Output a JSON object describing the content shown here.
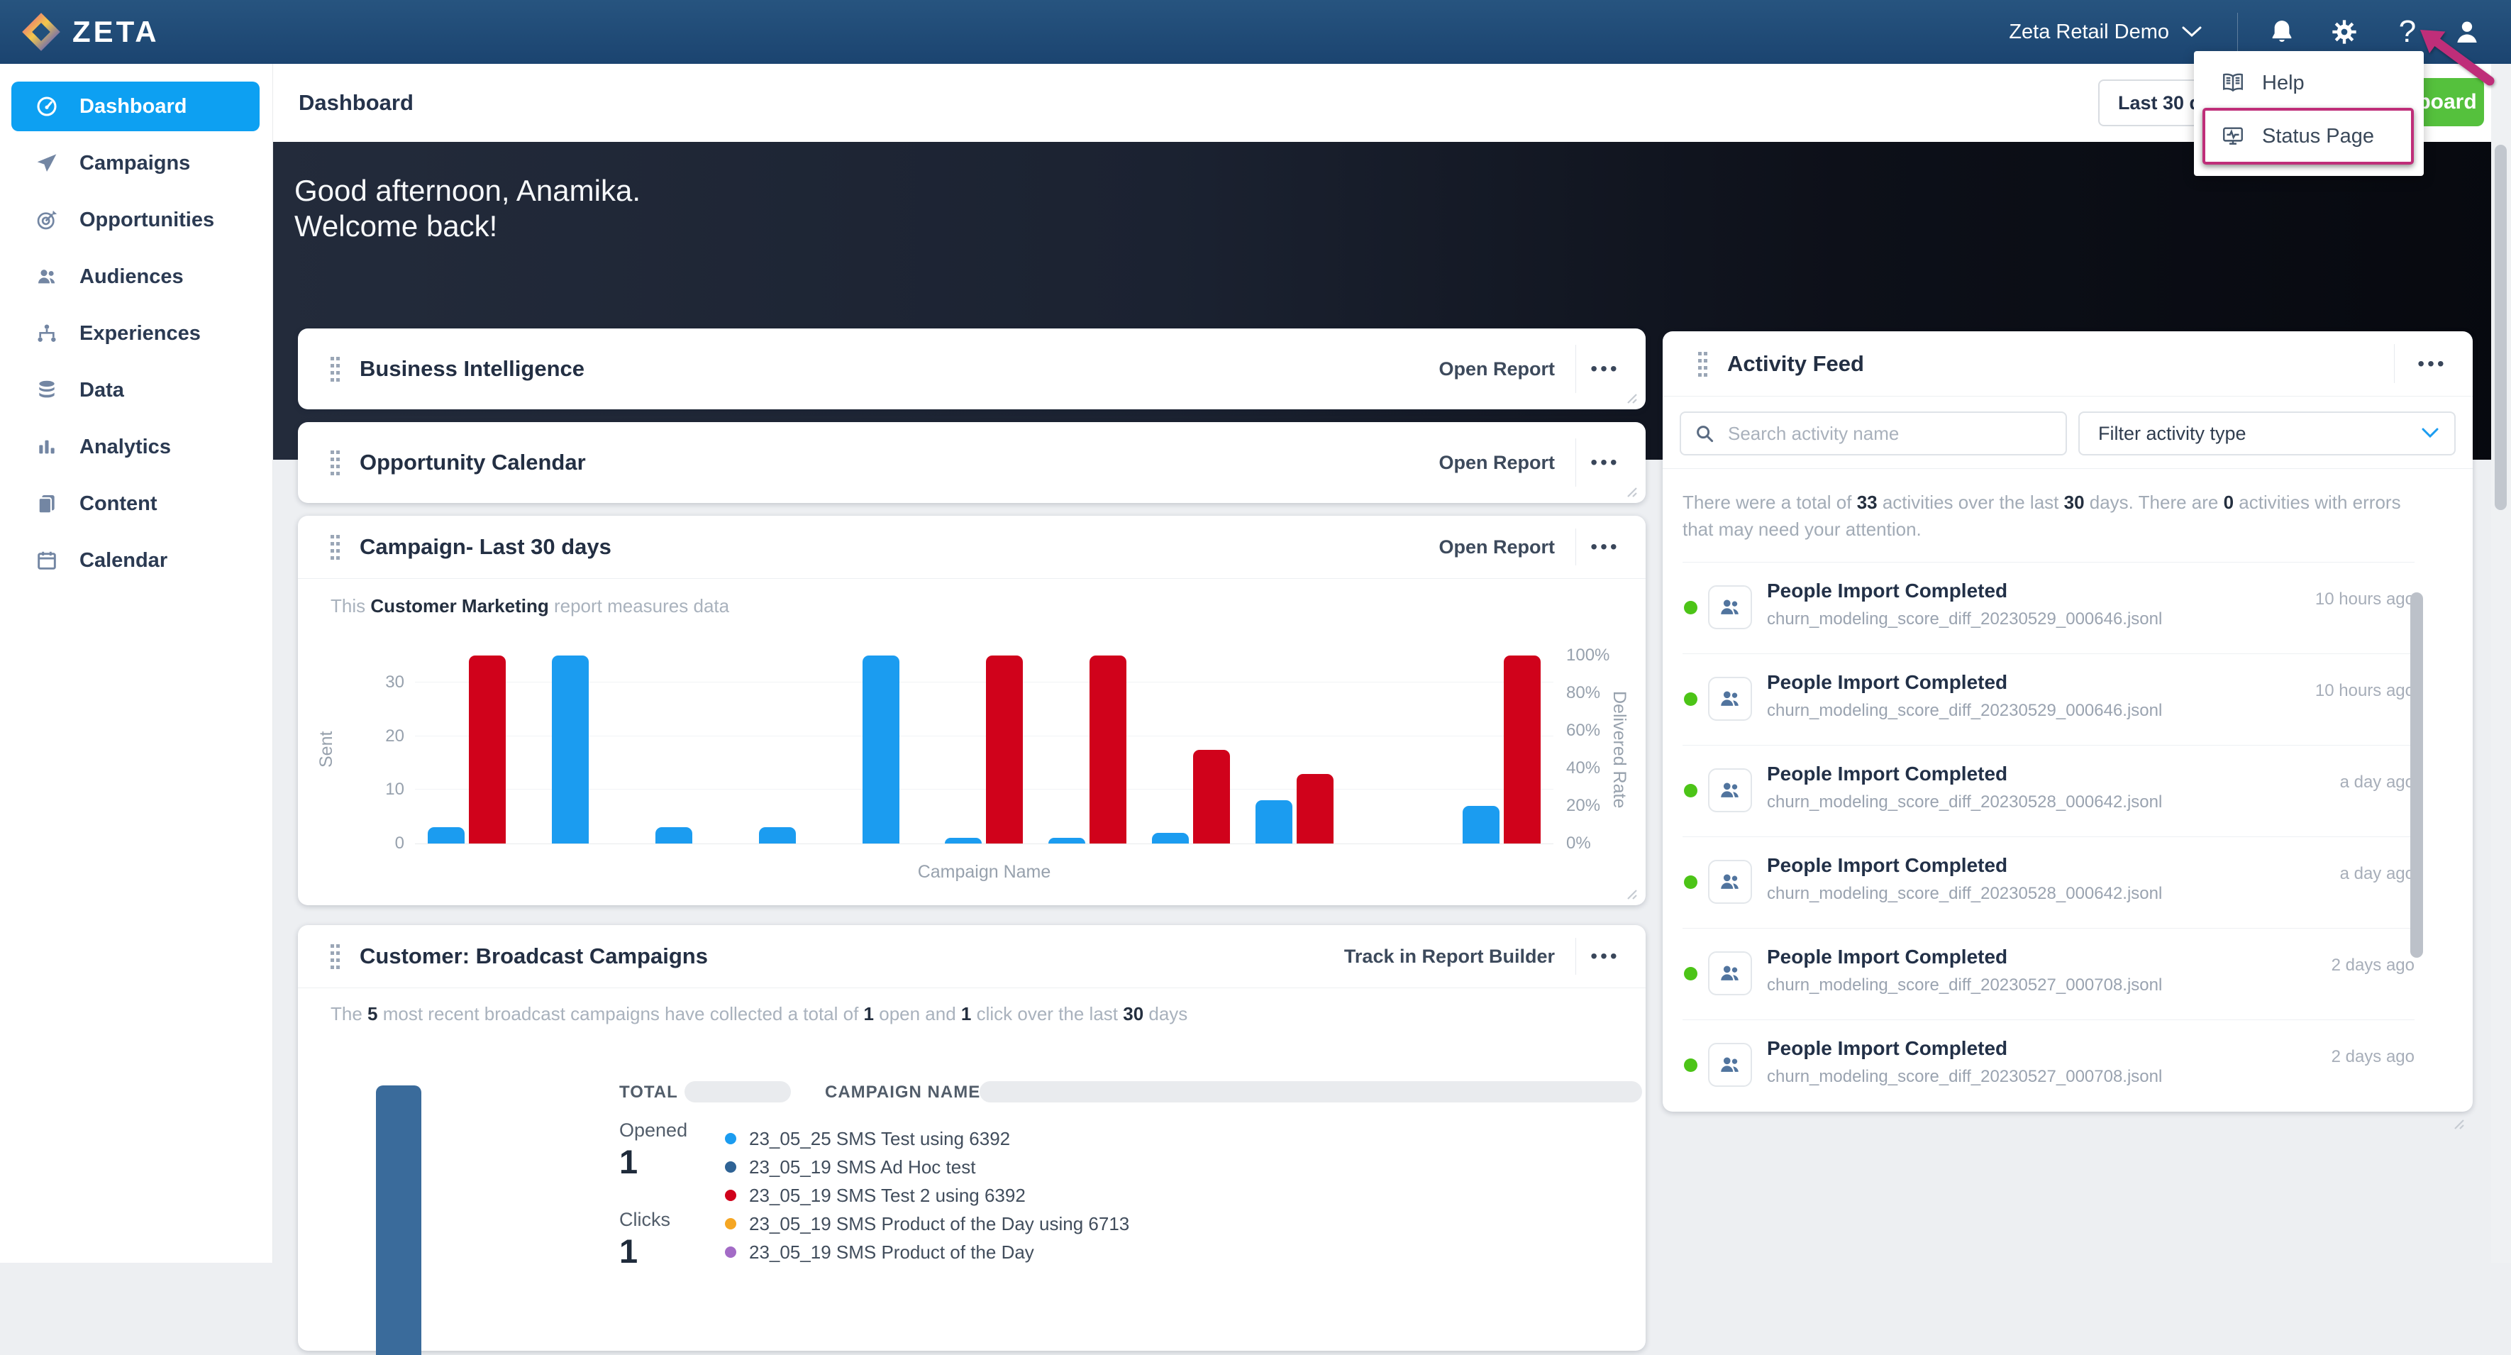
{
  "nav": {
    "brand": "ZETA",
    "account": "Zeta Retail Demo",
    "icon_names": [
      "bell",
      "gear",
      "help",
      "person"
    ],
    "help_glyph": "?"
  },
  "header": {
    "title": "Dashboard",
    "date_range": "Last 30 days",
    "create_button_visible_label": "board"
  },
  "help_menu": {
    "help_label": "Help",
    "status_label": "Status Page"
  },
  "sidebar": {
    "items": [
      {
        "label": "Dashboard",
        "icon": "dashboard",
        "active": true
      },
      {
        "label": "Campaigns",
        "icon": "campaigns"
      },
      {
        "label": "Opportunities",
        "icon": "opportunities"
      },
      {
        "label": "Audiences",
        "icon": "audiences"
      },
      {
        "label": "Experiences",
        "icon": "experiences"
      },
      {
        "label": "Data",
        "icon": "data"
      },
      {
        "label": "Analytics",
        "icon": "analytics"
      },
      {
        "label": "Content",
        "icon": "content"
      },
      {
        "label": "Calendar",
        "icon": "calendar"
      }
    ]
  },
  "hero": {
    "line1": "Good afternoon, Anamika.",
    "line2": "Welcome back!"
  },
  "ui": {
    "menu_dots": "•••"
  },
  "colors": {
    "accent_blue": "#0DA0F2",
    "chart_blue": "#1B9CF0",
    "chart_red": "#D0021B",
    "steel_blue": "#3A6B9B",
    "success_green": "#4CC417",
    "button_green": "#55C13D",
    "annotation_pink": "#BF2E79"
  },
  "cards": {
    "business_intelligence": {
      "title": "Business Intelligence",
      "action": "Open Report"
    },
    "opportunity_calendar": {
      "title": "Opportunity Calendar",
      "action": "Open Report"
    },
    "campaign": {
      "title": "Campaign- Last 30 days",
      "action": "Open Report",
      "description": [
        {
          "t": "This ",
          "b": false
        },
        {
          "t": "Customer Marketing",
          "b": true
        },
        {
          "t": " report measures data",
          "b": false
        }
      ],
      "chart_data": {
        "type": "bar",
        "title": "Campaign- Last 30 days",
        "xlabel": "Campaign Name",
        "grid": true,
        "y_left": {
          "label": "Sent",
          "ticks": [
            0,
            10,
            20,
            30
          ],
          "max": 35
        },
        "y_right": {
          "label": "Delivered Rate",
          "ticks": [
            "0%",
            "20%",
            "40%",
            "60%",
            "80%",
            "100%"
          ],
          "max": 100
        },
        "series": [
          {
            "name": "Sent",
            "color": "#1B9CF0"
          },
          {
            "name": "Delivered Rate",
            "color": "#D0021B"
          }
        ],
        "groups": [
          {
            "sent": 3,
            "delivered_rate": 100
          },
          {
            "sent": 35,
            "delivered_rate": null
          },
          {
            "sent": 3,
            "delivered_rate": null
          },
          {
            "sent": 3,
            "delivered_rate": null
          },
          {
            "sent": 35,
            "delivered_rate": null
          },
          {
            "sent": 1,
            "delivered_rate": 100
          },
          {
            "sent": 1,
            "delivered_rate": 100
          },
          {
            "sent": 2,
            "delivered_rate": 50
          },
          {
            "sent": 8,
            "delivered_rate": 37
          },
          {
            "sent": 0,
            "delivered_rate": null
          },
          {
            "sent": 7,
            "delivered_rate": 100
          }
        ]
      }
    },
    "broadcast": {
      "title": "Customer: Broadcast Campaigns",
      "action": "Track in Report Builder",
      "summary": [
        {
          "t": "The ",
          "b": false
        },
        {
          "t": "5",
          "b": true
        },
        {
          "t": " most recent broadcast campaigns have collected a total of ",
          "b": false
        },
        {
          "t": "1",
          "b": true
        },
        {
          "t": " open and ",
          "b": false
        },
        {
          "t": "1",
          "b": true
        },
        {
          "t": " click over the last ",
          "b": false
        },
        {
          "t": "30",
          "b": true
        },
        {
          "t": " days",
          "b": false
        }
      ],
      "table_headers": {
        "total": "TOTAL",
        "campaign_name": "CAMPAIGN NAME"
      },
      "stats": {
        "opened_label": "Opened",
        "opened_value": "1",
        "clicks_label": "Clicks",
        "clicks_value": "1"
      },
      "legend": [
        {
          "color": "#1B9CF0",
          "label": "23_05_25 SMS Test using 6392"
        },
        {
          "color": "#2F6395",
          "label": "23_05_19 SMS Ad Hoc test"
        },
        {
          "color": "#D0021B",
          "label": "23_05_19 SMS Test 2 using 6392"
        },
        {
          "color": "#F5A623",
          "label": "23_05_19 SMS Product of the Day using 6713"
        },
        {
          "color": "#A36BC6",
          "label": "23_05_19 SMS Product of the Day"
        }
      ],
      "chart": {
        "type": "bar",
        "bar_color": "#3A6B9B"
      }
    },
    "activity_feed": {
      "title": "Activity Feed",
      "search_placeholder": "Search activity name",
      "filter_label": "Filter activity type",
      "summary": [
        {
          "t": "There were a total of ",
          "b": false
        },
        {
          "t": "33",
          "b": true
        },
        {
          "t": " activities over the last ",
          "b": false
        },
        {
          "t": "30",
          "b": true
        },
        {
          "t": " days. There are ",
          "b": false
        },
        {
          "t": "0",
          "b": true
        },
        {
          "t": " activities with errors that may need your attention.",
          "b": false
        }
      ],
      "items": [
        {
          "title": "People Import Completed",
          "file": "churn_modeling_score_diff_20230529_000646.jsonl",
          "time": "10 hours ago"
        },
        {
          "title": "People Import Completed",
          "file": "churn_modeling_score_diff_20230529_000646.jsonl",
          "time": "10 hours ago"
        },
        {
          "title": "People Import Completed",
          "file": "churn_modeling_score_diff_20230528_000642.jsonl",
          "time": "a day ago"
        },
        {
          "title": "People Import Completed",
          "file": "churn_modeling_score_diff_20230528_000642.jsonl",
          "time": "a day ago"
        },
        {
          "title": "People Import Completed",
          "file": "churn_modeling_score_diff_20230527_000708.jsonl",
          "time": "2 days ago"
        },
        {
          "title": "People Import Completed",
          "file": "churn_modeling_score_diff_20230527_000708.jsonl",
          "time": "2 days ago"
        }
      ]
    }
  }
}
